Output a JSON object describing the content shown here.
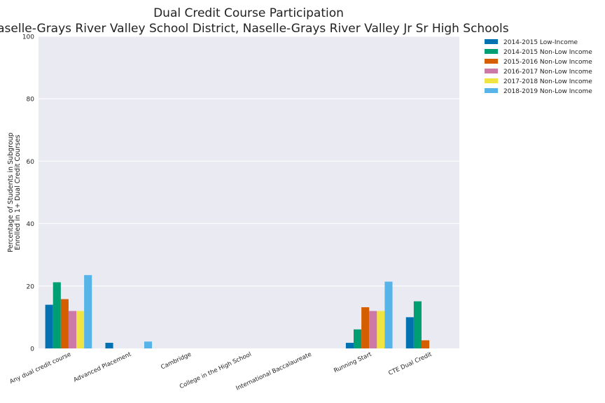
{
  "chart_data": {
    "type": "bar",
    "title": "Dual Credit Course Participation",
    "subtitle": "Naselle-Grays River Valley School District, Naselle-Grays River Valley Jr Sr High Schools",
    "xlabel": "",
    "ylabel": "Percentage of Students in Subgroup\nEnrolled in 1+ Dual Credit Courses",
    "ylim": [
      0,
      100
    ],
    "yticks": [
      0,
      20,
      40,
      60,
      80,
      100
    ],
    "grid": true,
    "legend_position": "outside-top-right",
    "categories": [
      "Any dual credit course",
      "Advanced Placement",
      "Cambridge",
      "College in the High School",
      "International Baccalaureate",
      "Running Start",
      "CTE Dual Credit"
    ],
    "series": [
      {
        "name": "2014-2015 Low-Income",
        "color": "#0072b2",
        "values": [
          14.0,
          1.8,
          0,
          0,
          0,
          1.8,
          10.0
        ]
      },
      {
        "name": "2014-2015 Non-Low Income",
        "color": "#009e73",
        "values": [
          21.2,
          0,
          0,
          0,
          0,
          6.1,
          15.1
        ]
      },
      {
        "name": "2015-2016 Non-Low Income",
        "color": "#d55e00",
        "values": [
          15.8,
          0,
          0,
          0,
          0,
          13.2,
          2.6
        ]
      },
      {
        "name": "2016-2017 Non-Low Income",
        "color": "#cc79a7",
        "values": [
          12.0,
          0,
          0,
          0,
          0,
          12.0,
          0
        ]
      },
      {
        "name": "2017-2018 Non-Low Income",
        "color": "#f0e442",
        "values": [
          12.0,
          0,
          0,
          0,
          0,
          12.0,
          0
        ]
      },
      {
        "name": "2018-2019 Non-Low Income",
        "color": "#56b4e9",
        "values": [
          23.5,
          2.2,
          0,
          0,
          0,
          21.4,
          0
        ]
      }
    ]
  }
}
